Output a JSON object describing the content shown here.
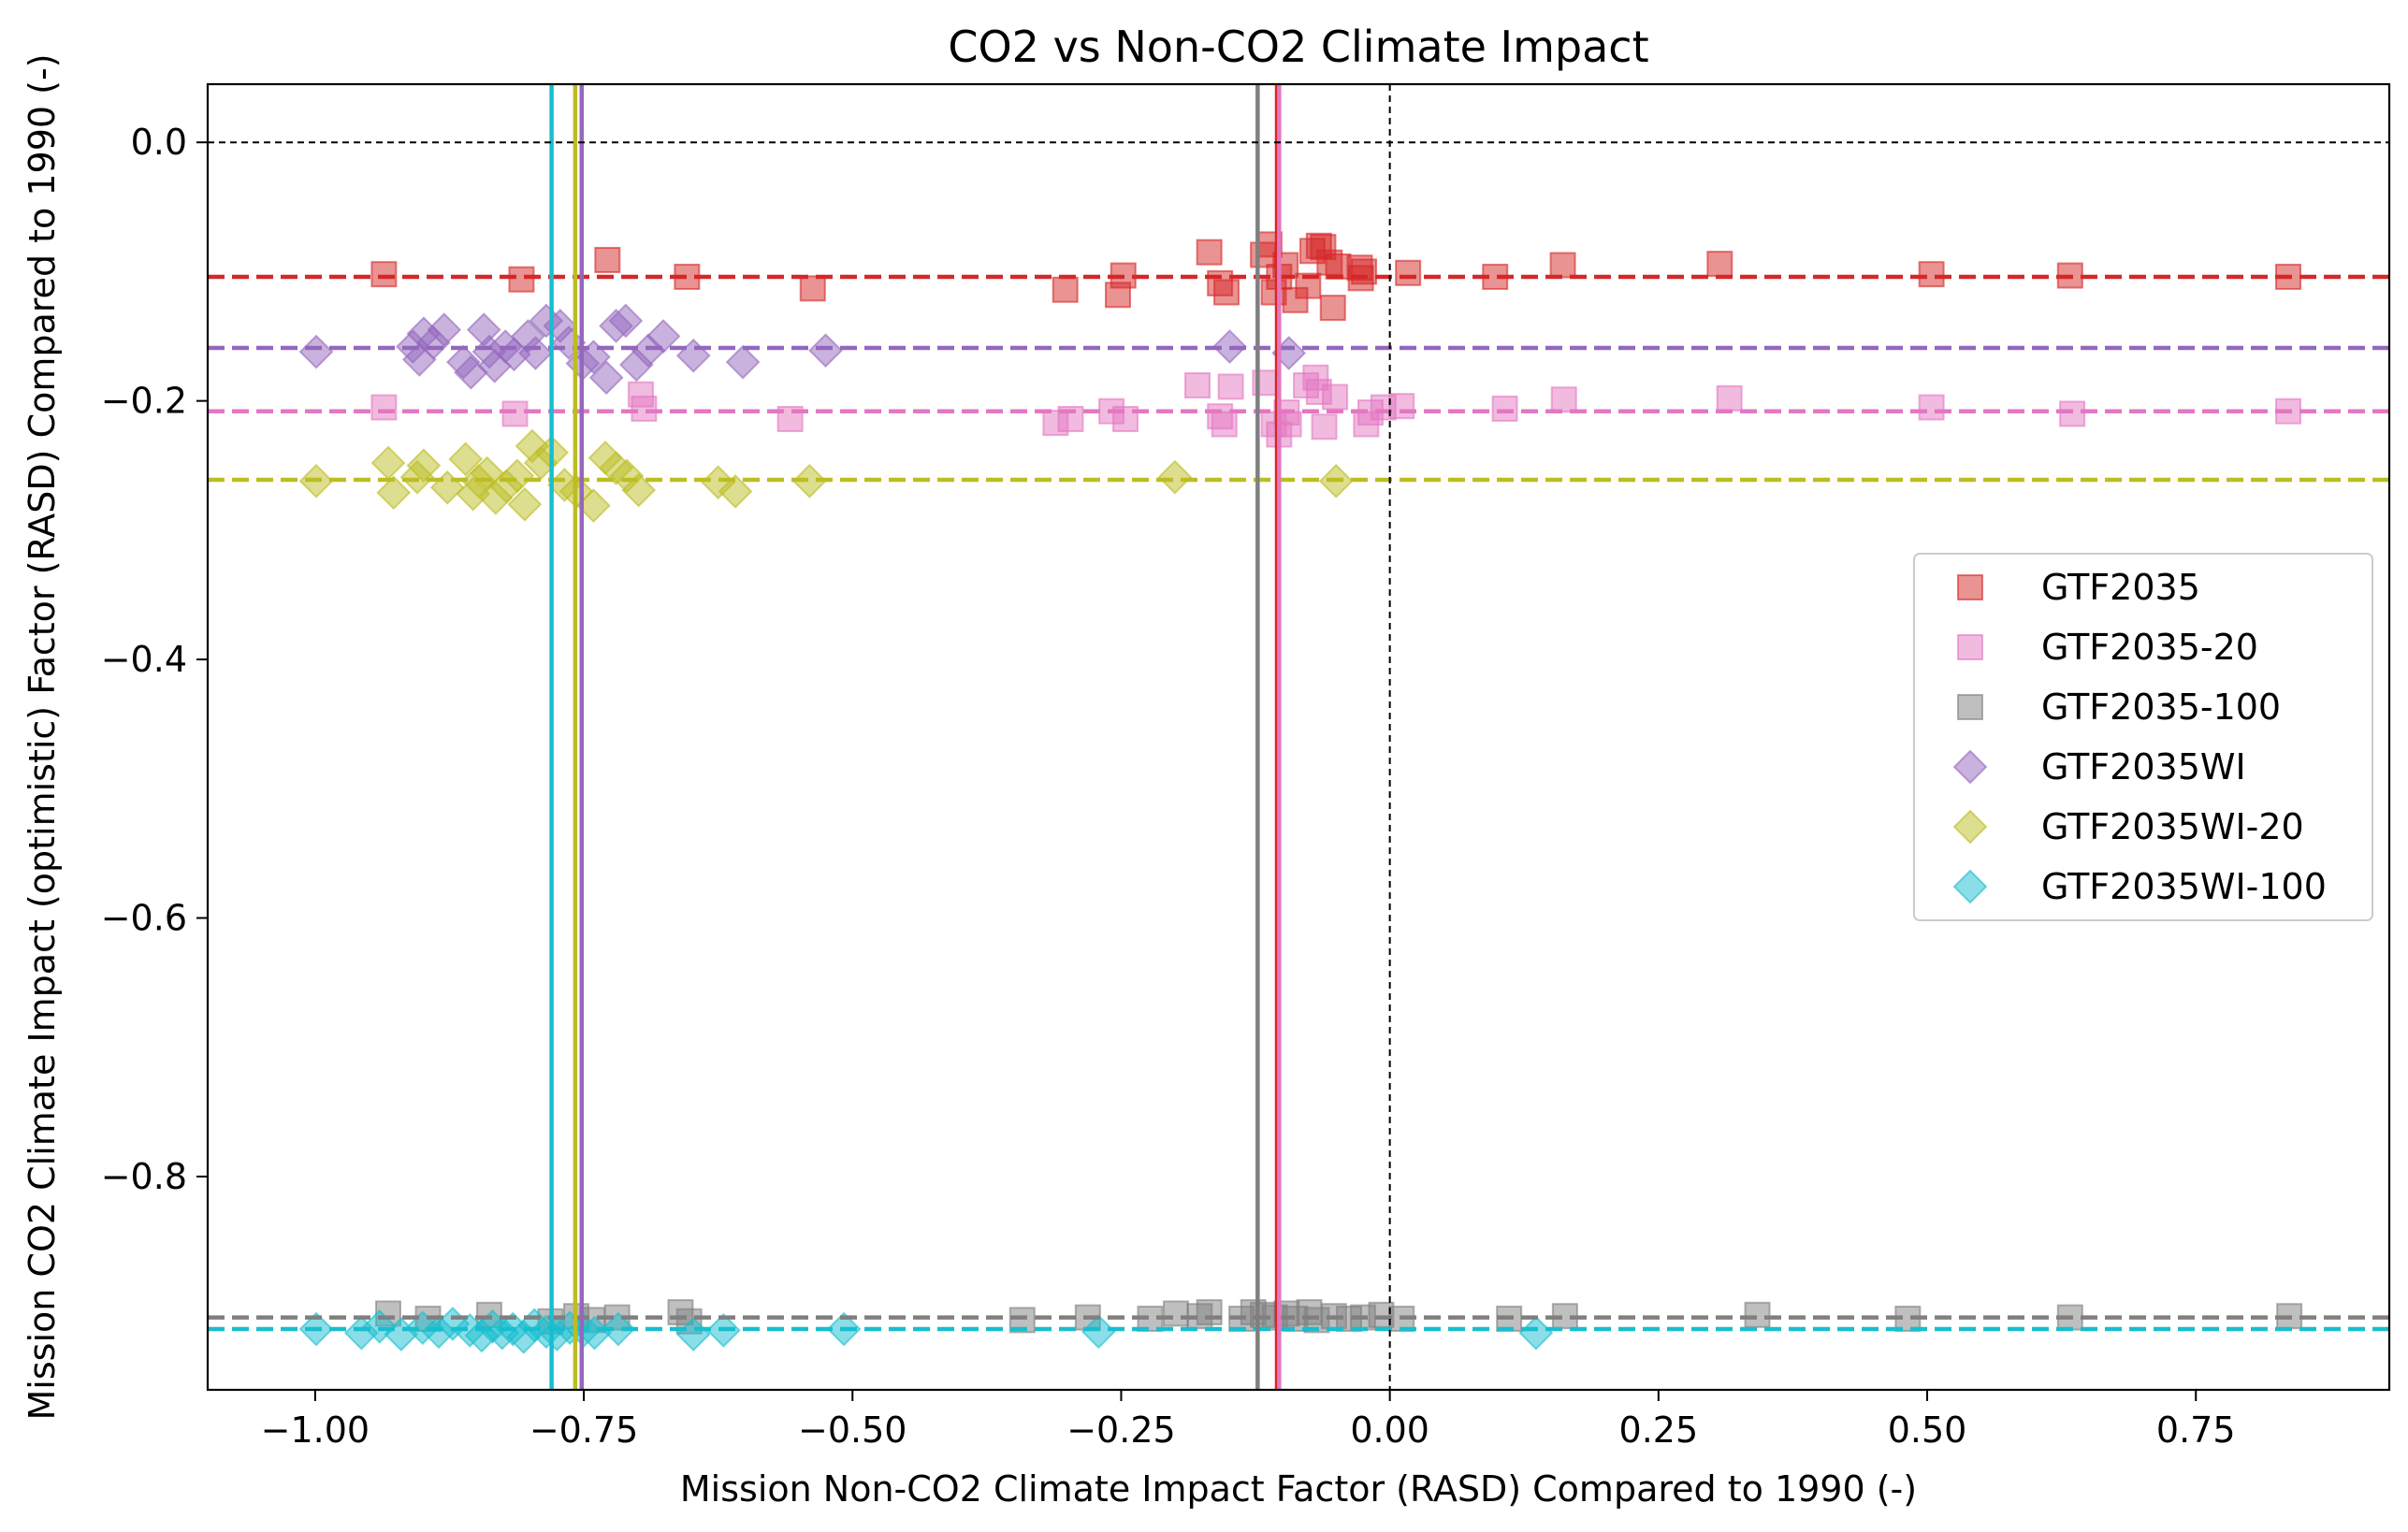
{
  "chart_data": {
    "type": "scatter",
    "title": "CO2 vs Non-CO2 Climate Impact",
    "xlabel": "Mission Non-CO2 Climate Impact Factor (RASD) Compared to 1990 (-)",
    "ylabel": "Mission CO2 Climate Impact (optimistic) Factor (RASD) Compared to 1990 (-)",
    "xlim": [
      -1.1,
      0.93
    ],
    "ylim": [
      -0.965,
      0.045
    ],
    "xticks": [
      -1.0,
      -0.75,
      -0.5,
      -0.25,
      0.0,
      0.25,
      0.5,
      0.75
    ],
    "xtick_labels": [
      "−1.00",
      "−0.75",
      "−0.50",
      "−0.25",
      "0.00",
      "0.25",
      "0.50",
      "0.75"
    ],
    "yticks": [
      0.0,
      -0.2,
      -0.4,
      -0.6,
      -0.8
    ],
    "ytick_labels": [
      "0.0",
      "−0.2",
      "−0.4",
      "−0.6",
      "−0.8"
    ],
    "grid": false,
    "legend_position": "center-right",
    "reference_lines": {
      "x": 0.0,
      "y": 0.0,
      "color": "#000000",
      "style": "dashed"
    },
    "series": [
      {
        "name": "GTF2035",
        "marker": "square",
        "color": "#d62728",
        "mean_x": -0.105,
        "mean_y": -0.104,
        "x": [
          -0.936,
          -0.808,
          -0.728,
          -0.654,
          -0.537,
          -0.302,
          -0.253,
          -0.248,
          -0.168,
          -0.158,
          -0.152,
          -0.118,
          -0.112,
          -0.108,
          -0.103,
          -0.097,
          -0.088,
          -0.076,
          -0.072,
          -0.066,
          -0.062,
          -0.056,
          -0.053,
          -0.048,
          -0.028,
          -0.027,
          -0.024,
          0.017,
          0.098,
          0.161,
          0.307,
          0.504,
          0.633,
          0.836
        ],
        "y": [
          -0.102,
          -0.106,
          -0.091,
          -0.104,
          -0.113,
          -0.114,
          -0.118,
          -0.103,
          -0.085,
          -0.109,
          -0.116,
          -0.087,
          -0.079,
          -0.116,
          -0.104,
          -0.095,
          -0.122,
          -0.111,
          -0.084,
          -0.08,
          -0.081,
          -0.093,
          -0.128,
          -0.096,
          -0.097,
          -0.105,
          -0.1,
          -0.101,
          -0.104,
          -0.095,
          -0.094,
          -0.102,
          -0.103,
          -0.104
        ]
      },
      {
        "name": "GTF2035-20",
        "marker": "square",
        "color": "#e377c2",
        "mean_x": -0.103,
        "mean_y": -0.208,
        "x": [
          -0.936,
          -0.814,
          -0.697,
          -0.694,
          -0.558,
          -0.311,
          -0.297,
          -0.259,
          -0.246,
          -0.179,
          -0.158,
          -0.154,
          -0.148,
          -0.116,
          -0.108,
          -0.103,
          -0.096,
          -0.094,
          -0.078,
          -0.069,
          -0.066,
          -0.061,
          -0.051,
          -0.022,
          -0.018,
          -0.006,
          0.011,
          0.107,
          0.162,
          0.316,
          0.504,
          0.635,
          0.836
        ],
        "y": [
          -0.205,
          -0.21,
          -0.195,
          -0.206,
          -0.214,
          -0.217,
          -0.214,
          -0.208,
          -0.214,
          -0.188,
          -0.212,
          -0.218,
          -0.189,
          -0.186,
          -0.218,
          -0.226,
          -0.209,
          -0.218,
          -0.188,
          -0.182,
          -0.193,
          -0.22,
          -0.197,
          -0.218,
          -0.209,
          -0.205,
          -0.204,
          -0.206,
          -0.199,
          -0.198,
          -0.205,
          -0.21,
          -0.208
        ]
      },
      {
        "name": "GTF2035-100",
        "marker": "square",
        "color": "#7f7f7f",
        "mean_x": -0.123,
        "mean_y": -0.909,
        "x": [
          -0.932,
          -0.895,
          -0.838,
          -0.781,
          -0.757,
          -0.742,
          -0.719,
          -0.66,
          -0.652,
          -0.342,
          -0.281,
          -0.223,
          -0.199,
          -0.177,
          -0.168,
          -0.138,
          -0.127,
          -0.118,
          -0.107,
          -0.096,
          -0.088,
          -0.075,
          -0.068,
          -0.052,
          -0.038,
          -0.025,
          -0.008,
          0.011,
          0.111,
          0.163,
          0.342,
          0.482,
          0.633,
          0.837
        ],
        "y": [
          -0.906,
          -0.91,
          -0.907,
          -0.912,
          -0.908,
          -0.911,
          -0.909,
          -0.905,
          -0.912,
          -0.911,
          -0.909,
          -0.91,
          -0.906,
          -0.908,
          -0.905,
          -0.91,
          -0.905,
          -0.907,
          -0.909,
          -0.906,
          -0.91,
          -0.905,
          -0.911,
          -0.908,
          -0.91,
          -0.909,
          -0.907,
          -0.91,
          -0.91,
          -0.908,
          -0.907,
          -0.91,
          -0.909,
          -0.908
        ]
      },
      {
        "name": "GTF2035WI",
        "marker": "diamond",
        "color": "#9467bd",
        "mean_x": -0.752,
        "mean_y": -0.159,
        "x": [
          -0.999,
          -0.909,
          -0.903,
          -0.899,
          -0.89,
          -0.88,
          -0.862,
          -0.855,
          -0.843,
          -0.838,
          -0.833,
          -0.823,
          -0.815,
          -0.802,
          -0.795,
          -0.785,
          -0.772,
          -0.764,
          -0.751,
          -0.741,
          -0.729,
          -0.72,
          -0.711,
          -0.701,
          -0.69,
          -0.676,
          -0.648,
          -0.602,
          -0.525,
          -0.149,
          -0.094
        ],
        "y": [
          -0.162,
          -0.158,
          -0.168,
          -0.148,
          -0.155,
          -0.145,
          -0.17,
          -0.178,
          -0.145,
          -0.162,
          -0.173,
          -0.158,
          -0.164,
          -0.15,
          -0.163,
          -0.138,
          -0.142,
          -0.155,
          -0.171,
          -0.166,
          -0.182,
          -0.142,
          -0.138,
          -0.172,
          -0.161,
          -0.15,
          -0.165,
          -0.17,
          -0.161,
          -0.158,
          -0.163
        ]
      },
      {
        "name": "GTF2035WI-20",
        "marker": "diamond",
        "color": "#bcbd22",
        "mean_x": -0.758,
        "mean_y": -0.261,
        "x": [
          -0.999,
          -0.932,
          -0.927,
          -0.905,
          -0.899,
          -0.877,
          -0.86,
          -0.853,
          -0.848,
          -0.84,
          -0.832,
          -0.822,
          -0.812,
          -0.805,
          -0.798,
          -0.79,
          -0.78,
          -0.768,
          -0.757,
          -0.741,
          -0.73,
          -0.72,
          -0.71,
          -0.699,
          -0.625,
          -0.609,
          -0.54,
          -0.2,
          -0.05
        ],
        "y": [
          -0.262,
          -0.248,
          -0.271,
          -0.259,
          -0.25,
          -0.267,
          -0.245,
          -0.272,
          -0.262,
          -0.256,
          -0.275,
          -0.266,
          -0.258,
          -0.28,
          -0.235,
          -0.248,
          -0.24,
          -0.265,
          -0.27,
          -0.281,
          -0.244,
          -0.252,
          -0.258,
          -0.269,
          -0.263,
          -0.27,
          -0.262,
          -0.259,
          -0.262
        ]
      },
      {
        "name": "GTF2035WI-100",
        "marker": "diamond",
        "color": "#17becf",
        "mean_x": -0.78,
        "mean_y": -0.918,
        "x": [
          -0.999,
          -0.957,
          -0.94,
          -0.92,
          -0.9,
          -0.885,
          -0.872,
          -0.856,
          -0.845,
          -0.835,
          -0.826,
          -0.816,
          -0.806,
          -0.796,
          -0.785,
          -0.775,
          -0.763,
          -0.75,
          -0.74,
          -0.718,
          -0.648,
          -0.62,
          -0.508,
          -0.271,
          0.136
        ],
        "y": [
          -0.918,
          -0.921,
          -0.916,
          -0.922,
          -0.917,
          -0.92,
          -0.914,
          -0.919,
          -0.923,
          -0.916,
          -0.921,
          -0.918,
          -0.924,
          -0.915,
          -0.92,
          -0.922,
          -0.917,
          -0.919,
          -0.921,
          -0.918,
          -0.922,
          -0.919,
          -0.918,
          -0.92,
          -0.921
        ]
      }
    ]
  }
}
